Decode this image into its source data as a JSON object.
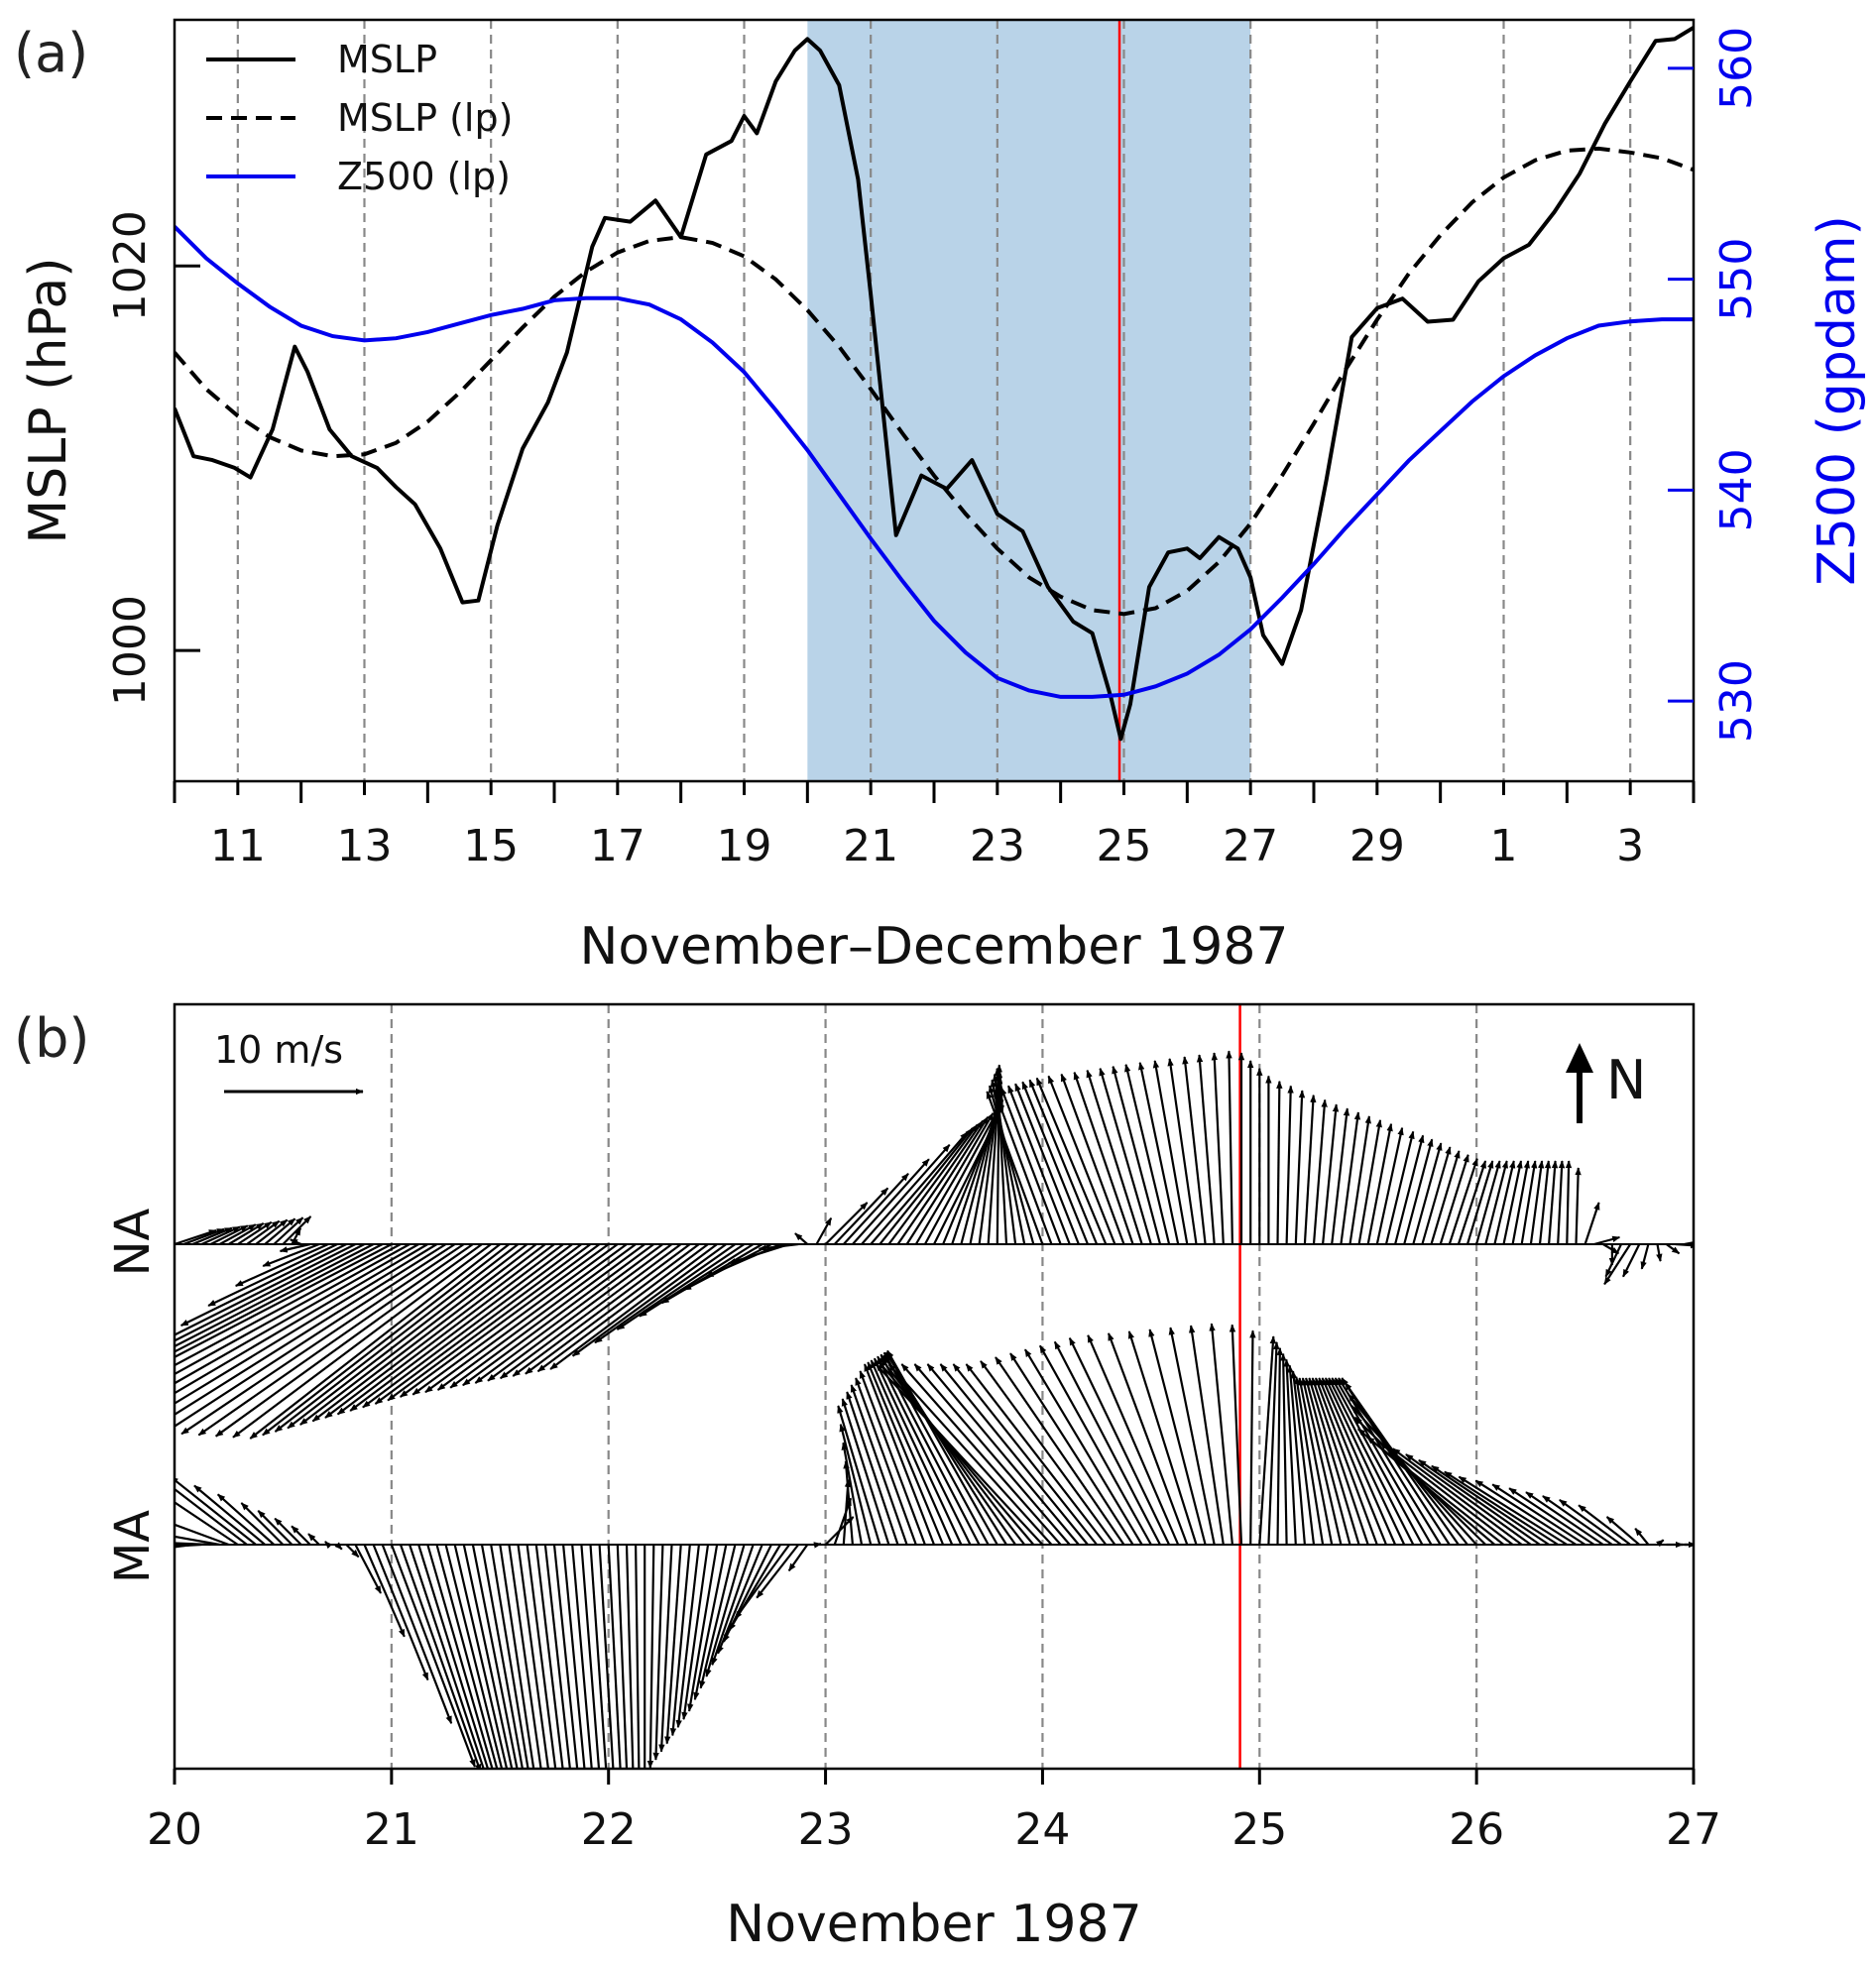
{
  "chart_data": [
    {
      "panel_label": "(a)",
      "type": "line",
      "xlabel": "November–December 1987",
      "x_unit": "days since 00 UTC 10 November 1987",
      "xlim": [
        0,
        24
      ],
      "x_ticks": [
        1,
        3,
        5,
        7,
        9,
        11,
        13,
        15,
        17,
        19,
        21,
        23
      ],
      "x_tick_labels": [
        "11",
        "13",
        "15",
        "17",
        "19",
        "21",
        "23",
        "25",
        "27",
        "29",
        "1",
        "3"
      ],
      "x_minor_ticks": [
        0,
        2,
        4,
        6,
        8,
        10,
        12,
        14,
        16,
        18,
        20,
        22,
        24
      ],
      "y_left": {
        "label": "MSLP (hPa)",
        "lim": [
          993.2,
          1032.8
        ],
        "ticks": [
          1000,
          1020
        ],
        "tick_labels": [
          "1000",
          "1020"
        ],
        "color": "#000000"
      },
      "y_right": {
        "label": "Z500 (gpdam)",
        "lim": [
          526.2,
          562.3
        ],
        "ticks": [
          530,
          540,
          550,
          560
        ],
        "tick_labels": [
          "530",
          "540",
          "550",
          "560"
        ],
        "color": "#0000ee"
      },
      "vlines_dashed": [
        1,
        3,
        5,
        7,
        9,
        11,
        13,
        15,
        17,
        19,
        21,
        23
      ],
      "shaded_interval": [
        10,
        17
      ],
      "event_line": 14.93,
      "legend": {
        "position": "top-left",
        "entries": [
          "MSLP",
          "MSLP (lp)",
          "Z500 (lp)"
        ]
      },
      "series": [
        {
          "name": "MSLP",
          "axis": "left",
          "style": "solid",
          "color": "#000000",
          "x": [
            0,
            0.3,
            0.6,
            0.95,
            1.2,
            1.55,
            1.9,
            2.1,
            2.45,
            2.8,
            3.2,
            3.5,
            3.8,
            4.2,
            4.55,
            4.8,
            5.1,
            5.5,
            5.9,
            6.2,
            6.6,
            6.8,
            7.2,
            7.6,
            8.0,
            8.4,
            8.8,
            9.0,
            9.2,
            9.5,
            9.8,
            10.0,
            10.2,
            10.5,
            10.8,
            11.0,
            11.4,
            11.8,
            12.2,
            12.6,
            13.0,
            13.4,
            13.8,
            14.2,
            14.5,
            14.8,
            14.95,
            15.1,
            15.4,
            15.7,
            16.0,
            16.2,
            16.5,
            16.8,
            17.0,
            17.2,
            17.5,
            17.8,
            18.2,
            18.6,
            19.0,
            19.4,
            19.8,
            20.2,
            20.6,
            21.0,
            21.4,
            21.8,
            22.2,
            22.6,
            23.0,
            23.4,
            23.7,
            24.0
          ],
          "y": [
            1012.6,
            1010.1,
            1009.9,
            1009.5,
            1009.0,
            1011.5,
            1015.8,
            1014.5,
            1011.5,
            1010.1,
            1009.5,
            1008.5,
            1007.6,
            1005.3,
            1002.5,
            1002.6,
            1006.5,
            1010.5,
            1012.9,
            1015.5,
            1021.0,
            1022.5,
            1022.3,
            1023.4,
            1021.5,
            1025.8,
            1026.5,
            1027.8,
            1026.9,
            1029.6,
            1031.2,
            1031.8,
            1031.2,
            1029.4,
            1024.5,
            1018.5,
            1006.0,
            1009.1,
            1008.4,
            1009.9,
            1007.1,
            1006.2,
            1003.3,
            1001.5,
            1000.9,
            997.5,
            995.4,
            997.2,
            1003.3,
            1005.1,
            1005.3,
            1004.8,
            1005.9,
            1005.3,
            1003.8,
            1000.8,
            999.3,
            1002.1,
            1008.9,
            1016.3,
            1017.8,
            1018.3,
            1017.1,
            1017.2,
            1019.2,
            1020.4,
            1021.1,
            1022.8,
            1024.8,
            1027.4,
            1029.6,
            1031.7,
            1031.8,
            1032.4
          ]
        },
        {
          "name": "MSLP (lp)",
          "axis": "left",
          "style": "dashed",
          "color": "#000000",
          "x": [
            0,
            0.5,
            1,
            1.5,
            2,
            2.5,
            3,
            3.5,
            4,
            4.5,
            5,
            5.5,
            6,
            6.5,
            7,
            7.5,
            8,
            8.5,
            9,
            9.5,
            10,
            10.5,
            11,
            11.5,
            12,
            12.5,
            13,
            13.5,
            14,
            14.5,
            15,
            15.5,
            16,
            16.5,
            17,
            17.5,
            18,
            18.5,
            19,
            19.5,
            20,
            20.5,
            21,
            21.5,
            22,
            22.5,
            23,
            23.5,
            24
          ],
          "y": [
            1015.5,
            1013.6,
            1012.2,
            1011.1,
            1010.4,
            1010.1,
            1010.2,
            1010.8,
            1011.9,
            1013.4,
            1015.1,
            1016.8,
            1018.4,
            1019.7,
            1020.7,
            1021.3,
            1021.5,
            1021.2,
            1020.5,
            1019.3,
            1017.7,
            1015.8,
            1013.6,
            1011.3,
            1009.1,
            1007.1,
            1005.3,
            1003.8,
            1002.8,
            1002.1,
            1001.9,
            1002.2,
            1003.1,
            1004.6,
            1006.6,
            1009.1,
            1011.8,
            1014.6,
            1017.2,
            1019.6,
            1021.6,
            1023.3,
            1024.6,
            1025.5,
            1026.0,
            1026.1,
            1025.9,
            1025.6,
            1025.0
          ]
        },
        {
          "name": "Z500 (lp)",
          "axis": "right",
          "style": "solid",
          "color": "#0000ee",
          "x": [
            0,
            0.5,
            1,
            1.5,
            2,
            2.5,
            3,
            3.5,
            4,
            4.5,
            5,
            5.5,
            6,
            6.5,
            7,
            7.5,
            8,
            8.5,
            9,
            9.5,
            10,
            10.5,
            11,
            11.5,
            12,
            12.5,
            13,
            13.5,
            14,
            14.5,
            15,
            15.5,
            16,
            16.5,
            17,
            17.5,
            18,
            18.5,
            19,
            19.5,
            20,
            20.5,
            21,
            21.5,
            22,
            22.5,
            23,
            23.5,
            24
          ],
          "y": [
            552.5,
            551.0,
            549.8,
            548.7,
            547.8,
            547.3,
            547.1,
            547.2,
            547.5,
            547.9,
            548.3,
            548.6,
            549.0,
            549.1,
            549.1,
            548.8,
            548.1,
            547.0,
            545.6,
            543.8,
            541.9,
            539.8,
            537.7,
            535.7,
            533.8,
            532.3,
            531.1,
            530.5,
            530.2,
            530.2,
            530.3,
            530.7,
            531.3,
            532.2,
            533.4,
            534.9,
            536.5,
            538.2,
            539.8,
            541.4,
            542.8,
            544.2,
            545.4,
            546.4,
            547.2,
            547.8,
            548.0,
            548.1,
            548.1
          ]
        }
      ]
    },
    {
      "panel_label": "(b)",
      "type": "quiver",
      "xlabel": "November 1987",
      "x_unit": "day of November 1987",
      "xlim": [
        20,
        27
      ],
      "x_ticks": [
        20,
        21,
        22,
        23,
        24,
        25,
        26,
        27
      ],
      "x_tick_labels": [
        "20",
        "21",
        "22",
        "23",
        "24",
        "25",
        "26",
        "27"
      ],
      "vlines_dashed": [
        21,
        22,
        23,
        24,
        25,
        26
      ],
      "event_line": 24.91,
      "scale_arrow": {
        "label": "10 m/s",
        "speed_ms": 10
      },
      "north_arrow_label": "N",
      "speed_unit": "m/s",
      "interval_hours": 1,
      "rows": [
        {
          "label": "NA",
          "t": [
            20.0,
            20.5,
            20.65,
            21.0,
            21.5,
            22.0,
            22.5,
            22.85,
            23.0,
            23.2,
            23.5,
            23.8,
            24.0,
            24.3,
            24.6,
            24.9,
            25.05,
            25.3,
            25.6,
            25.9,
            26.2,
            26.45,
            26.55,
            26.7,
            27.0
          ],
          "u": [
            3,
            2,
            -3,
            -25,
            -18,
            -15,
            -12,
            -4,
            3,
            7,
            5,
            0,
            -4,
            -5,
            -3,
            0,
            0,
            1,
            2,
            2,
            1,
            0,
            2,
            -2,
            3
          ],
          "v": [
            1,
            2,
            -1,
            -13,
            -14,
            -11,
            -9,
            -1,
            3,
            8,
            10,
            13,
            11,
            12,
            13,
            14,
            12,
            10,
            8,
            6,
            6,
            6,
            0,
            -3,
            1
          ]
        },
        {
          "label": "MA",
          "t": [
            20.0,
            20.3,
            20.5,
            20.8,
            21.0,
            21.5,
            22.0,
            22.5,
            22.85,
            23.0,
            23.25,
            23.5,
            23.8,
            24.0,
            24.3,
            24.6,
            24.9,
            25.0,
            25.3,
            25.6,
            25.9,
            26.1,
            26.4,
            26.7,
            26.85,
            27.0
          ],
          "u": [
            -25,
            -8,
            -3,
            1,
            6,
            3,
            1,
            -2,
            -4,
            2,
            -3,
            -5,
            -8,
            -12,
            -10,
            -7,
            -1,
            1,
            -2,
            -5,
            -8,
            -10,
            -8,
            -4,
            1,
            2
          ],
          "v": [
            -6,
            6,
            3,
            -1,
            -16,
            -20,
            -19,
            -12,
            -5,
            2,
            10,
            13,
            14,
            13,
            13,
            15,
            16,
            15,
            12,
            12,
            12,
            8,
            5,
            3,
            0,
            0
          ]
        }
      ]
    }
  ]
}
